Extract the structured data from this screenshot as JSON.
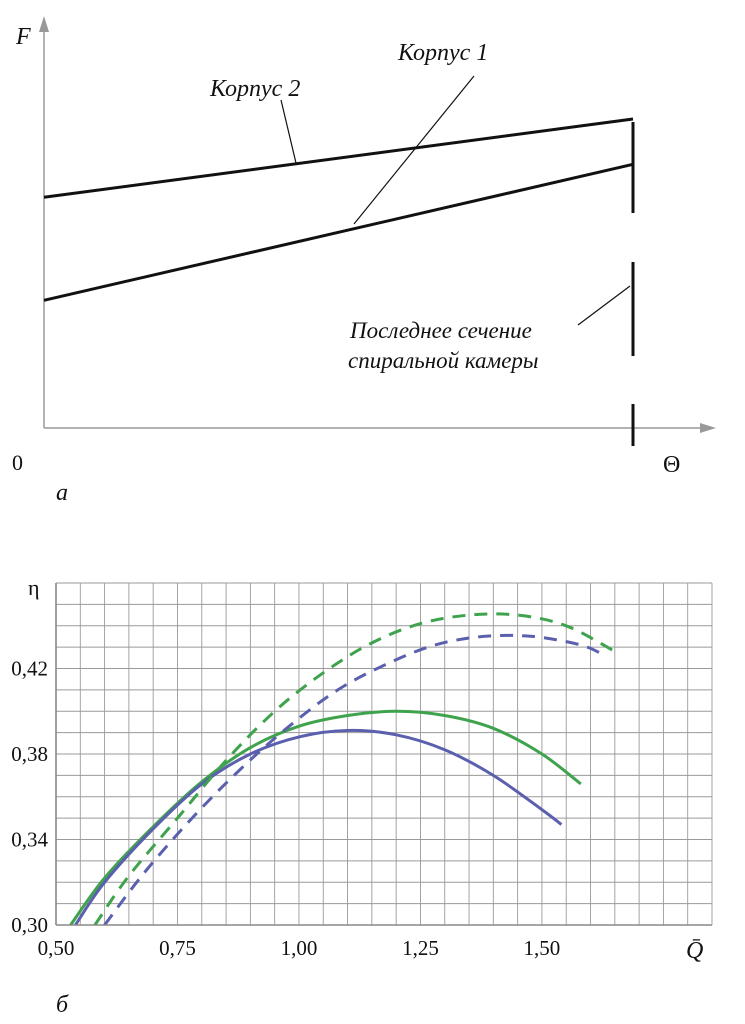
{
  "chart_data": [
    {
      "type": "line",
      "panel_label": "а",
      "ylabel": "F",
      "xlabel": "Θ",
      "origin_label": "0",
      "series": [
        {
          "name": "Корпус 2",
          "x": [
            0,
            1
          ],
          "y": [
            0.56,
            0.75
          ]
        },
        {
          "name": "Корпус 1",
          "x": [
            0,
            1
          ],
          "y": [
            0.31,
            0.64
          ]
        }
      ],
      "annotations": {
        "last_section_line1": "Последнее сечение",
        "last_section_line2": "спиральной камеры"
      }
    },
    {
      "type": "line",
      "panel_label": "б",
      "ylabel": "η",
      "xlabel": "Q̄",
      "xlim": [
        0.5,
        1.85
      ],
      "ylim": [
        0.3,
        0.46
      ],
      "x_ticks": [
        "0,50",
        "0,75",
        "1,00",
        "1,25",
        "1,50"
      ],
      "y_ticks": [
        "0,30",
        "0,34",
        "0,38",
        "0,42"
      ],
      "grid": true,
      "colors": {
        "green": "#3fa34d",
        "blue": "#5a5fae"
      },
      "series": [
        {
          "color": "green",
          "dash": false,
          "x": [
            0.53,
            0.6,
            0.7,
            0.8,
            0.9,
            1.0,
            1.1,
            1.2,
            1.3,
            1.4,
            1.5,
            1.58
          ],
          "y": [
            0.3,
            0.322,
            0.346,
            0.367,
            0.383,
            0.393,
            0.398,
            0.4,
            0.398,
            0.392,
            0.38,
            0.366
          ]
        },
        {
          "color": "blue",
          "dash": false,
          "x": [
            0.54,
            0.6,
            0.7,
            0.8,
            0.9,
            1.0,
            1.1,
            1.2,
            1.3,
            1.4,
            1.5,
            1.54
          ],
          "y": [
            0.3,
            0.32,
            0.345,
            0.366,
            0.38,
            0.388,
            0.391,
            0.389,
            0.382,
            0.37,
            0.354,
            0.347
          ]
        },
        {
          "color": "green",
          "dash": true,
          "x": [
            0.58,
            0.65,
            0.75,
            0.85,
            0.95,
            1.05,
            1.15,
            1.25,
            1.35,
            1.45,
            1.55,
            1.65
          ],
          "y": [
            0.3,
            0.323,
            0.35,
            0.377,
            0.4,
            0.418,
            0.432,
            0.441,
            0.445,
            0.445,
            0.44,
            0.428
          ]
        },
        {
          "color": "blue",
          "dash": true,
          "x": [
            0.6,
            0.68,
            0.78,
            0.88,
            0.98,
            1.08,
            1.18,
            1.28,
            1.38,
            1.48,
            1.58,
            1.63
          ],
          "y": [
            0.3,
            0.324,
            0.35,
            0.373,
            0.393,
            0.41,
            0.422,
            0.431,
            0.435,
            0.435,
            0.431,
            0.426
          ]
        }
      ]
    }
  ]
}
